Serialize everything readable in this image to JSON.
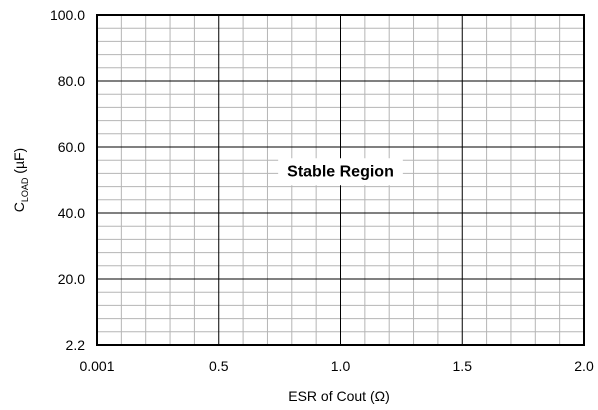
{
  "chart_data": {
    "type": "scatter",
    "xlabel": "ESR of Cout (Ω)",
    "ylabel_main": "C",
    "ylabel_sub": "LOAD",
    "ylabel_unit": " (µF)",
    "xlim": [
      0.001,
      2.0
    ],
    "ylim": [
      2.2,
      100.0
    ],
    "x_ticks": [
      {
        "value": 0.001,
        "label": "0.001"
      },
      {
        "value": 0.5,
        "label": "0.5"
      },
      {
        "value": 1.0,
        "label": "1.0"
      },
      {
        "value": 1.5,
        "label": "1.5"
      },
      {
        "value": 2.0,
        "label": "2.0"
      }
    ],
    "y_ticks": [
      {
        "value": 2.2,
        "label": "2.2"
      },
      {
        "value": 20.0,
        "label": "20.0"
      },
      {
        "value": 40.0,
        "label": "40.0"
      },
      {
        "value": 60.0,
        "label": "60.0"
      },
      {
        "value": 80.0,
        "label": "80.0"
      },
      {
        "value": 100.0,
        "label": "100.0"
      }
    ],
    "minor_x_divisions": 5,
    "minor_y_divisions": 5,
    "grid": true,
    "annotation": {
      "text": "Stable Region",
      "x": 1.0,
      "y": 52.5
    },
    "series": []
  }
}
